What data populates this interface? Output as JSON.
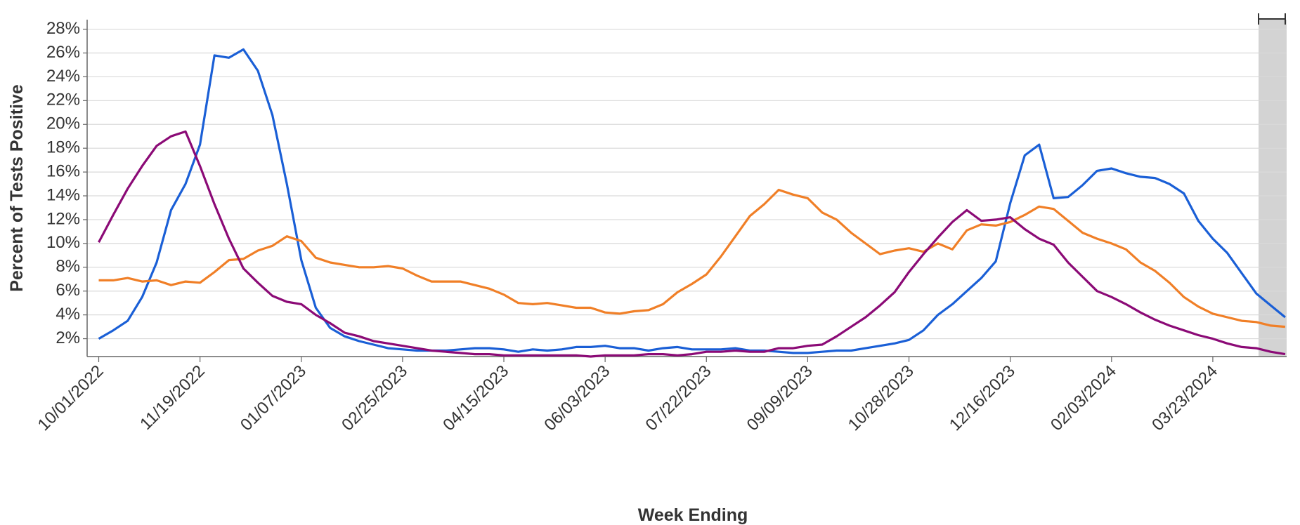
{
  "chart_data": {
    "type": "line",
    "x_label": "Week Ending",
    "y_label": "Percent of Tests Positive",
    "x": [
      "10/01/2022",
      "10/08/2022",
      "10/15/2022",
      "10/22/2022",
      "10/29/2022",
      "11/05/2022",
      "11/12/2022",
      "11/19/2022",
      "11/26/2022",
      "12/03/2022",
      "12/10/2022",
      "12/17/2022",
      "12/24/2022",
      "12/31/2022",
      "01/07/2023",
      "01/14/2023",
      "01/21/2023",
      "01/28/2023",
      "02/04/2023",
      "02/11/2023",
      "02/18/2023",
      "02/25/2023",
      "03/04/2023",
      "03/11/2023",
      "03/18/2023",
      "03/25/2023",
      "04/01/2023",
      "04/08/2023",
      "04/15/2023",
      "04/22/2023",
      "04/29/2023",
      "05/06/2023",
      "05/13/2023",
      "05/20/2023",
      "05/27/2023",
      "06/03/2023",
      "06/10/2023",
      "06/17/2023",
      "06/24/2023",
      "07/01/2023",
      "07/08/2023",
      "07/15/2023",
      "07/22/2023",
      "07/29/2023",
      "08/05/2023",
      "08/12/2023",
      "08/19/2023",
      "08/26/2023",
      "09/02/2023",
      "09/09/2023",
      "09/16/2023",
      "09/23/2023",
      "09/30/2023",
      "10/07/2023",
      "10/14/2023",
      "10/21/2023",
      "10/28/2023",
      "11/04/2023",
      "11/11/2023",
      "11/18/2023",
      "11/25/2023",
      "12/02/2023",
      "12/09/2023",
      "12/16/2023",
      "12/23/2023",
      "12/30/2023",
      "01/06/2024",
      "01/13/2024",
      "01/20/2024",
      "01/27/2024",
      "02/03/2024",
      "02/10/2024",
      "02/17/2024",
      "02/24/2024",
      "03/02/2024",
      "03/09/2024",
      "03/16/2024",
      "03/23/2024",
      "03/30/2024",
      "04/06/2024",
      "04/13/2024",
      "04/20/2024",
      "04/27/2024"
    ],
    "xticks": [
      "10/01/2022",
      "11/19/2022",
      "01/07/2023",
      "02/25/2023",
      "04/15/2023",
      "06/03/2023",
      "07/22/2023",
      "09/09/2023",
      "10/28/2023",
      "12/16/2023",
      "02/03/2024",
      "03/23/2024"
    ],
    "ylim": [
      0.5,
      28.8
    ],
    "yticks": [
      {
        "value": 2,
        "label": "2%"
      },
      {
        "value": 4,
        "label": "4%"
      },
      {
        "value": 6,
        "label": "6%"
      },
      {
        "value": 8,
        "label": "8%"
      },
      {
        "value": 10,
        "label": "10%"
      },
      {
        "value": 12,
        "label": "12%"
      },
      {
        "value": 14,
        "label": "14%"
      },
      {
        "value": 16,
        "label": "16%"
      },
      {
        "value": 18,
        "label": "18%"
      },
      {
        "value": 20,
        "label": "20%"
      },
      {
        "value": 22,
        "label": "22%"
      },
      {
        "value": 24,
        "label": "24%"
      },
      {
        "value": 26,
        "label": "26%"
      },
      {
        "value": 28,
        "label": "28%"
      }
    ],
    "grid": true,
    "series": [
      {
        "color": "#1a5fd6",
        "values": [
          2.0,
          2.7,
          3.5,
          5.5,
          8.4,
          12.8,
          15.0,
          18.3,
          25.8,
          25.6,
          26.3,
          24.5,
          20.8,
          15.0,
          8.6,
          4.6,
          2.9,
          2.2,
          1.8,
          1.5,
          1.2,
          1.1,
          1.0,
          1.0,
          1.0,
          1.1,
          1.2,
          1.2,
          1.1,
          0.9,
          1.1,
          1.0,
          1.1,
          1.3,
          1.3,
          1.4,
          1.2,
          1.2,
          1.0,
          1.2,
          1.3,
          1.1,
          1.1,
          1.1,
          1.2,
          1.0,
          1.0,
          0.9,
          0.8,
          0.8,
          0.9,
          1.0,
          1.0,
          1.2,
          1.4,
          1.6,
          1.9,
          2.7,
          4.0,
          4.9,
          6.0,
          7.1,
          8.5,
          13.4,
          17.4,
          18.3,
          13.8,
          13.9,
          14.9,
          16.1,
          16.3,
          15.9,
          15.6,
          15.5,
          15.0,
          14.2,
          11.9,
          10.4,
          9.2,
          7.5,
          5.8,
          4.8,
          3.8
        ]
      },
      {
        "color": "#f07f27",
        "values": [
          6.9,
          6.9,
          7.1,
          6.8,
          6.9,
          6.5,
          6.8,
          6.7,
          7.6,
          8.6,
          8.7,
          9.4,
          9.8,
          10.6,
          10.2,
          8.8,
          8.4,
          8.2,
          8.0,
          8.0,
          8.1,
          7.9,
          7.3,
          6.8,
          6.8,
          6.8,
          6.5,
          6.2,
          5.7,
          5.0,
          4.9,
          5.0,
          4.8,
          4.6,
          4.6,
          4.2,
          4.1,
          4.3,
          4.4,
          4.9,
          5.9,
          6.6,
          7.4,
          8.9,
          10.6,
          12.3,
          13.3,
          14.5,
          14.1,
          13.8,
          12.6,
          12.0,
          10.9,
          10.0,
          9.1,
          9.4,
          9.6,
          9.3,
          10.0,
          9.5,
          11.1,
          11.6,
          11.5,
          11.8,
          12.4,
          13.1,
          12.9,
          11.9,
          10.9,
          10.4,
          10.0,
          9.5,
          8.4,
          7.7,
          6.7,
          5.5,
          4.7,
          4.1,
          3.8,
          3.5,
          3.4,
          3.1,
          3.0
        ]
      },
      {
        "color": "#8b0a76",
        "values": [
          10.1,
          12.4,
          14.6,
          16.5,
          18.2,
          19.0,
          19.4,
          16.5,
          13.3,
          10.4,
          7.9,
          6.7,
          5.6,
          5.1,
          4.9,
          4.0,
          3.3,
          2.5,
          2.2,
          1.8,
          1.6,
          1.4,
          1.2,
          1.0,
          0.9,
          0.8,
          0.7,
          0.7,
          0.6,
          0.6,
          0.6,
          0.6,
          0.6,
          0.6,
          0.5,
          0.6,
          0.6,
          0.6,
          0.7,
          0.7,
          0.6,
          0.7,
          0.9,
          0.9,
          1.0,
          0.9,
          0.9,
          1.2,
          1.2,
          1.4,
          1.5,
          2.2,
          3.0,
          3.8,
          4.8,
          5.9,
          7.6,
          9.1,
          10.5,
          11.8,
          12.8,
          11.9,
          12.0,
          12.2,
          11.2,
          10.4,
          9.9,
          8.4,
          7.2,
          6.0,
          5.5,
          4.9,
          4.2,
          3.6,
          3.1,
          2.7,
          2.3,
          2.0,
          1.6,
          1.3,
          1.2,
          0.9,
          0.7
        ]
      }
    ]
  }
}
